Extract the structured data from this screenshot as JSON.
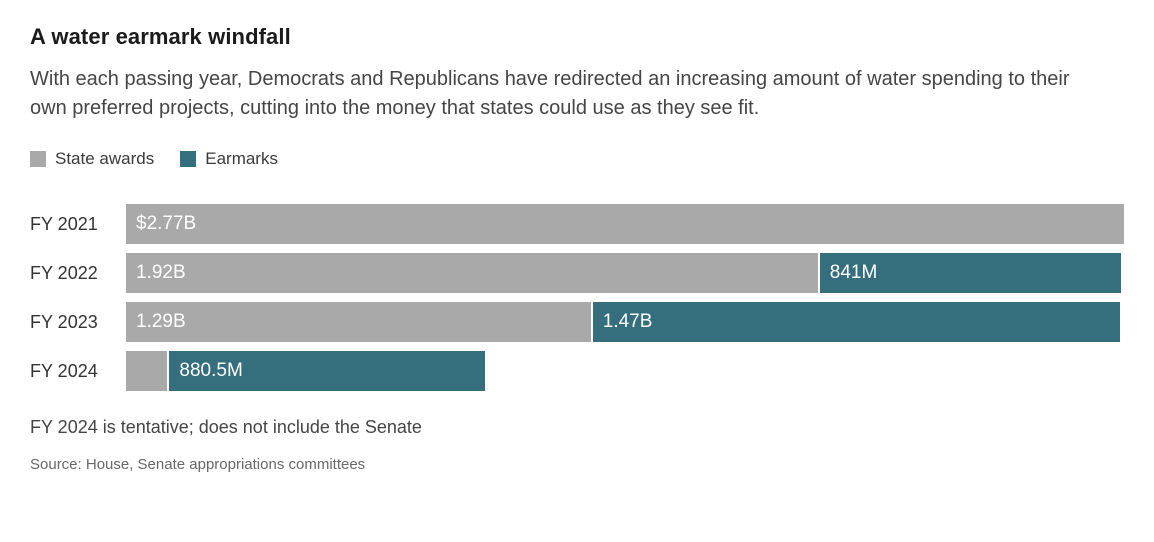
{
  "header": {
    "title": "A water earmark windfall",
    "subtitle": "With each passing year, Democrats and Republicans have redirected an increasing amount of water spending to their own preferred projects, cutting into the money that states could use as they see fit."
  },
  "legend": {
    "items": [
      {
        "label": "State awards",
        "color": "#a9a9a9"
      },
      {
        "label": "Earmarks",
        "color": "#356e7d"
      }
    ]
  },
  "chart_data": {
    "type": "bar",
    "orientation": "horizontal",
    "stacked": true,
    "unit": "USD",
    "xlim": [
      0,
      2.77
    ],
    "grid": false,
    "legend_position": "top",
    "categories": [
      "FY 2021",
      "FY 2022",
      "FY 2023",
      "FY 2024"
    ],
    "series": [
      {
        "name": "State awards",
        "color": "#a9a9a9",
        "values": [
          2.77,
          1.92,
          1.29,
          0.115
        ],
        "labels": [
          "$2.77B",
          "1.92B",
          "1.29B",
          ""
        ]
      },
      {
        "name": "Earmarks",
        "color": "#356e7d",
        "values": [
          0,
          0.841,
          1.47,
          0.8805
        ],
        "labels": [
          "",
          "841M",
          "1.47B",
          "880.5M"
        ]
      }
    ]
  },
  "footer": {
    "note": "FY 2024 is tentative; does not include the Senate",
    "source": "Source: House, Senate appropriations committees"
  }
}
